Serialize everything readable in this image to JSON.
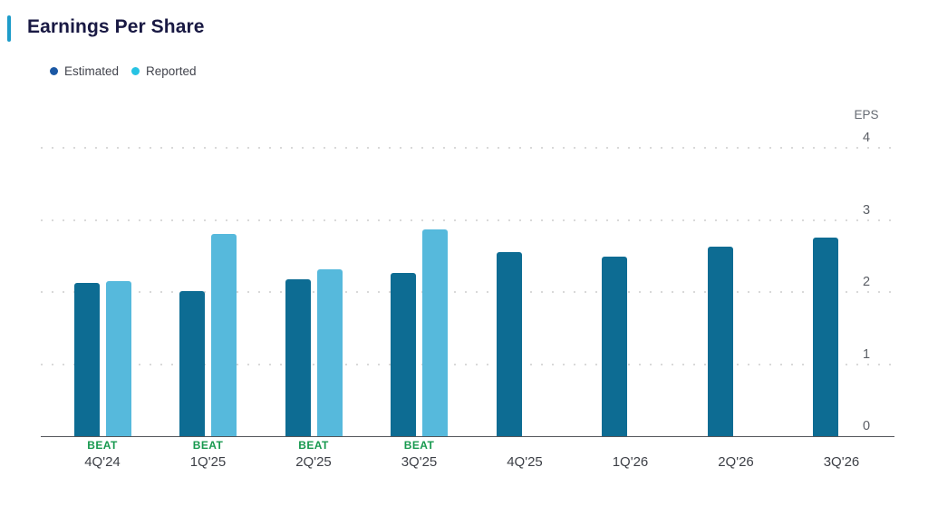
{
  "header": {
    "title": "Earnings Per Share",
    "accent_color": "#1d9cc9"
  },
  "legend": {
    "items": [
      {
        "label": "Estimated",
        "color": "#1b58a4"
      },
      {
        "label": "Reported",
        "color": "#27c3e3"
      }
    ]
  },
  "chart_data": {
    "type": "bar",
    "title": "Earnings Per Share",
    "ylabel": "EPS",
    "ylim": [
      0,
      4
    ],
    "yticks": [
      0,
      1,
      2,
      3,
      4
    ],
    "grid": "dotted horizontal gridlines",
    "legend_position": "top-left",
    "categories": [
      "4Q'24",
      "1Q'25",
      "2Q'25",
      "3Q'25",
      "4Q'25",
      "1Q'26",
      "2Q'26",
      "3Q'26"
    ],
    "series": [
      {
        "name": "Estimated",
        "color": "#0d6c93",
        "values": [
          2.13,
          2.01,
          2.18,
          2.26,
          2.55,
          2.49,
          2.63,
          2.75
        ]
      },
      {
        "name": "Reported",
        "color": "#56b9dc",
        "values": [
          2.15,
          2.81,
          2.31,
          2.87,
          null,
          null,
          null,
          null
        ]
      }
    ],
    "result_labels": [
      "BEAT",
      "BEAT",
      "BEAT",
      "BEAT",
      null,
      null,
      null,
      null
    ],
    "result_color": "#18994f",
    "colors": {
      "axis": "#54565b",
      "gridline": "#d9d9d9",
      "tick_label": "#5b5f66",
      "category_label": "#3d4047"
    }
  }
}
